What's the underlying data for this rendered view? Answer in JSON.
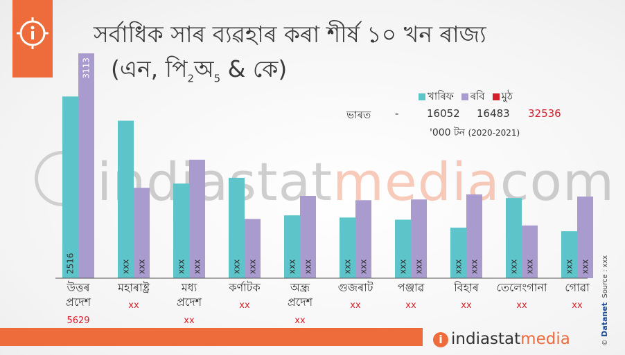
{
  "title": "সৰ্বাধিক সাৰ ব্যৱহাৰ কৰা শীৰ্ষ ১০ খন ৰাজ্য",
  "subtitle_main": "(এন, পি",
  "subtitle_sub1": "2",
  "subtitle_mid": "অ",
  "subtitle_sub2": "5",
  "subtitle_end": " & কে)",
  "colors": {
    "kharif": "#5dc5c9",
    "rabi": "#a99bcd",
    "total": "#d41e2a",
    "accent": "#ee6b3b"
  },
  "legend": {
    "kharif": "খাৰিফ",
    "rabi": "ৰবি",
    "total": "মুঠ"
  },
  "totals": {
    "label": "ভাৰত",
    "sep": "-",
    "kharif": "16052",
    "rabi": "16483",
    "total": "32536"
  },
  "unit": {
    "text": "'000 টন",
    "year": "(2020-2021)"
  },
  "watermark": {
    "part1": "indiastat",
    "part2": "media",
    "part3": "com"
  },
  "footer": {
    "brand1": "indiastat",
    "brand2": "media",
    "source": "Source : xxx",
    "datanet": "Datanet"
  },
  "chart_data": {
    "type": "bar",
    "categories": [
      "উত্তৰ প্ৰদেশ",
      "মহাৰাষ্ট্ৰ",
      "মধ্য প্ৰদেশ",
      "কৰ্ণাটক",
      "অন্ধ্ৰ প্ৰদেশ",
      "গুজৰাট",
      "পঞ্জাৱ",
      "বিহাৰ",
      "তেলেংগানা",
      "গোৱা"
    ],
    "series": [
      {
        "name": "খাৰিফ",
        "values": [
          2516,
          2180,
          1310,
          1390,
          870,
          840,
          810,
          700,
          1110,
          650
        ],
        "labels": [
          "2516",
          "xxx",
          "xxx",
          "xxx",
          "xxx",
          "xxx",
          "xxx",
          "xxx",
          "xxx",
          "xxx"
        ]
      },
      {
        "name": "ৰবি",
        "values": [
          3113,
          1250,
          1640,
          820,
          1140,
          1080,
          1090,
          1160,
          730,
          1130
        ],
        "labels": [
          "3113",
          "xxx",
          "xxx",
          "xxx",
          "xxx",
          "xxx",
          "xxx",
          "xxx",
          "xxx",
          "xxx"
        ]
      }
    ],
    "totals": [
      "5629",
      "xx",
      "xx",
      "xx",
      "xx",
      "xx",
      "xx",
      "xx",
      "xx",
      "xx"
    ],
    "ylim": [
      0,
      3200
    ],
    "grid": false,
    "legend_position": "top-right"
  }
}
